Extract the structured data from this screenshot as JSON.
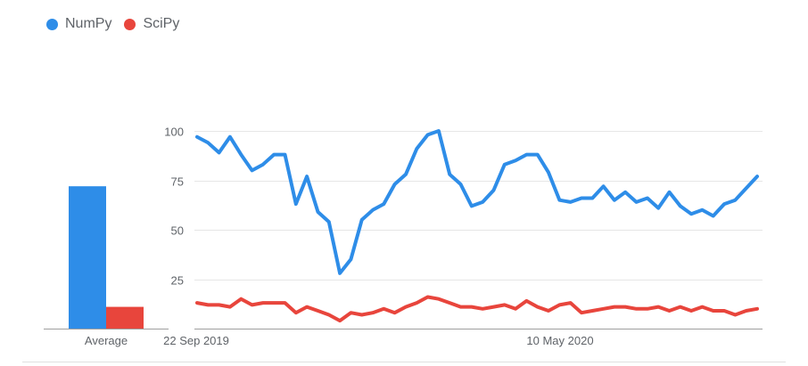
{
  "legend": {
    "numpy_label": "NumPy",
    "scipy_label": "SciPy"
  },
  "colors": {
    "numpy": "#2e8de8",
    "scipy": "#e8453c",
    "grid": "#e6e6e6",
    "axis": "#9e9e9e",
    "text": "#5f6368"
  },
  "chart_data": [
    {
      "type": "bar",
      "categories": [
        "Average"
      ],
      "series": [
        {
          "name": "NumPy",
          "values": [
            72
          ]
        },
        {
          "name": "SciPy",
          "values": [
            11
          ]
        }
      ],
      "xlabel": "Average",
      "ylim": [
        0,
        100
      ]
    },
    {
      "type": "line",
      "x_tick_labels": [
        "22 Sep 2019",
        "10 May 2020"
      ],
      "y_ticks": [
        25,
        50,
        75,
        100
      ],
      "ylim": [
        0,
        100
      ],
      "grid": true,
      "series": [
        {
          "name": "NumPy",
          "values": [
            97,
            94,
            89,
            97,
            88,
            80,
            83,
            88,
            88,
            63,
            77,
            59,
            54,
            28,
            35,
            55,
            60,
            63,
            73,
            78,
            91,
            98,
            100,
            78,
            73,
            62,
            64,
            70,
            83,
            85,
            88,
            88,
            79,
            65,
            64,
            66,
            66,
            72,
            65,
            69,
            64,
            66,
            61,
            69,
            62,
            58,
            60,
            57,
            63,
            65,
            71,
            77
          ]
        },
        {
          "name": "SciPy",
          "values": [
            13,
            12,
            12,
            11,
            15,
            12,
            13,
            13,
            13,
            8,
            11,
            9,
            7,
            4,
            8,
            7,
            8,
            10,
            8,
            11,
            13,
            16,
            15,
            13,
            11,
            11,
            10,
            11,
            12,
            10,
            14,
            11,
            9,
            12,
            13,
            8,
            9,
            10,
            11,
            11,
            10,
            10,
            11,
            9,
            11,
            9,
            11,
            9,
            9,
            7,
            9,
            10
          ]
        }
      ]
    }
  ]
}
